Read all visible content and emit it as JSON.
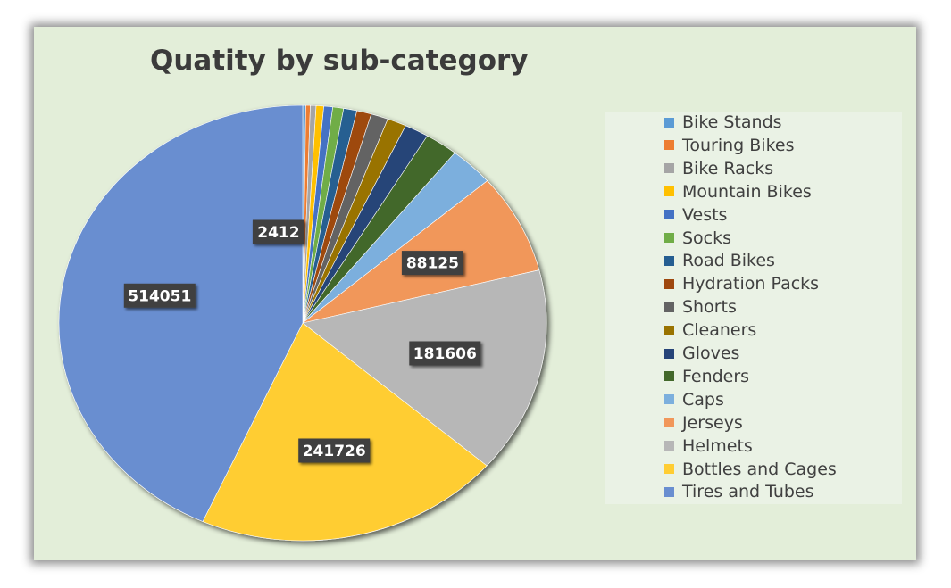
{
  "chart_data": {
    "type": "pie",
    "title": "Quatity by sub-category",
    "legend_position": "right",
    "categories": [
      "Bike Stands",
      "Touring Bikes",
      "Bike Racks",
      "Mountain Bikes",
      "Vests",
      "Socks",
      "Road Bikes",
      "Hydration Packs",
      "Shorts",
      "Cleaners",
      "Gloves",
      "Fenders",
      "Caps",
      "Jerseys",
      "Helmets",
      "Bottles and Cages",
      "Tires and Tubes"
    ],
    "values": [
      2412,
      3500,
      4500,
      6000,
      7000,
      8500,
      10500,
      11500,
      13500,
      15000,
      19000,
      26000,
      35000,
      88125,
      181606,
      241726,
      514051
    ],
    "data_labels": [
      {
        "category": "Bike Stands",
        "text": "2412"
      },
      {
        "category": "Jerseys",
        "text": "88125"
      },
      {
        "category": "Helmets",
        "text": "181606"
      },
      {
        "category": "Bottles and Cages",
        "text": "241726"
      },
      {
        "category": "Tires and Tubes",
        "text": "514051"
      }
    ],
    "colors": [
      "#5b9bd5",
      "#ed7d31",
      "#a5a5a5",
      "#ffc000",
      "#4472c4",
      "#70ad47",
      "#255e91",
      "#9e480e",
      "#636363",
      "#997300",
      "#264478",
      "#43682b",
      "#7cafdd",
      "#f1975a",
      "#b7b7b7",
      "#ffcd33",
      "#698ed0"
    ]
  }
}
